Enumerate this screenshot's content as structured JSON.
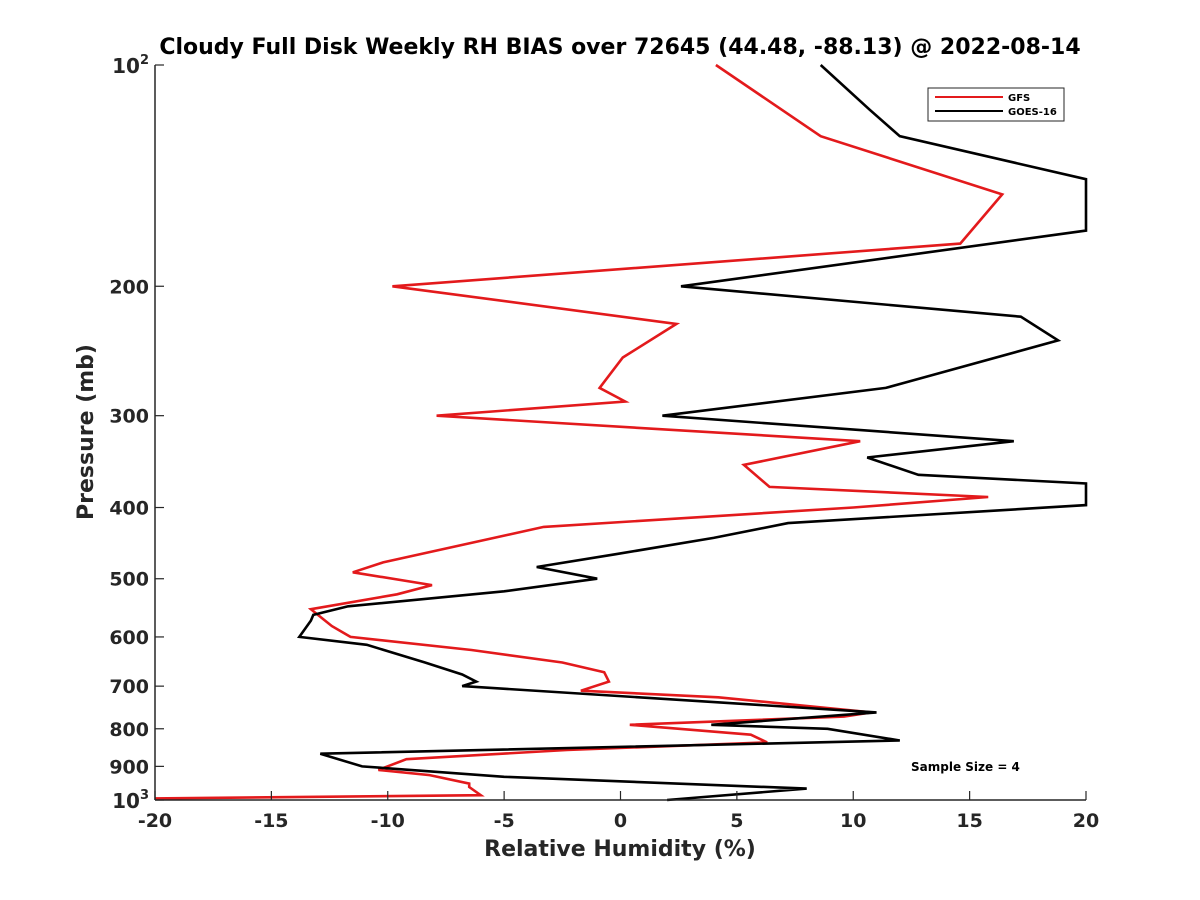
{
  "chart_data": {
    "type": "line",
    "title": "Cloudy Full Disk Weekly RH BIAS over 72645 (44.48, -88.13) @ 2022-08-14",
    "xlabel": "Relative Humidity (%)",
    "ylabel": "Pressure (mb)",
    "xlim": [
      -20,
      20
    ],
    "ylim": [
      100,
      1000
    ],
    "y_scale": "log",
    "y_reversed": true,
    "grid": false,
    "legend_position": "top-right",
    "x_ticks": [
      {
        "value": -20,
        "label": "-20"
      },
      {
        "value": -15,
        "label": "-15"
      },
      {
        "value": -10,
        "label": "-10"
      },
      {
        "value": -5,
        "label": "-5"
      },
      {
        "value": 0,
        "label": "0"
      },
      {
        "value": 5,
        "label": "5"
      },
      {
        "value": 10,
        "label": "10"
      },
      {
        "value": 15,
        "label": "15"
      },
      {
        "value": 20,
        "label": "20"
      }
    ],
    "y_ticks": [
      {
        "value": 100,
        "base": "10",
        "exp": "2"
      },
      {
        "value": 200,
        "label": "200"
      },
      {
        "value": 300,
        "label": "300"
      },
      {
        "value": 400,
        "label": "400"
      },
      {
        "value": 500,
        "label": "500"
      },
      {
        "value": 600,
        "label": "600"
      },
      {
        "value": 700,
        "label": "700"
      },
      {
        "value": 800,
        "label": "800"
      },
      {
        "value": 900,
        "label": "900"
      },
      {
        "value": 1000,
        "base": "10",
        "exp": "3"
      }
    ],
    "series": [
      {
        "name": "GFS",
        "color": "#e31a1c",
        "points": [
          [
            4.1,
            100
          ],
          [
            8.6,
            125
          ],
          [
            16.4,
            150
          ],
          [
            14.6,
            175
          ],
          [
            -9.8,
            200
          ],
          [
            2.4,
            225
          ],
          [
            0.1,
            250
          ],
          [
            -0.9,
            275
          ],
          [
            0.2,
            287
          ],
          [
            -7.9,
            300
          ],
          [
            10.3,
            325
          ],
          [
            5.3,
            350
          ],
          [
            6.4,
            375
          ],
          [
            15.8,
            387
          ],
          [
            10.0,
            400
          ],
          [
            -3.3,
            425
          ],
          [
            -10.2,
            475
          ],
          [
            -11.5,
            490
          ],
          [
            -8.1,
            510
          ],
          [
            -9.6,
            525
          ],
          [
            -13.3,
            550
          ],
          [
            -13.0,
            560
          ],
          [
            -12.4,
            580
          ],
          [
            -11.6,
            600
          ],
          [
            -6.4,
            625
          ],
          [
            -2.5,
            650
          ],
          [
            -0.7,
            670
          ],
          [
            -0.5,
            690
          ],
          [
            -1.7,
            710
          ],
          [
            4.2,
            725
          ],
          [
            10.8,
            760
          ],
          [
            9.6,
            770
          ],
          [
            0.4,
            790
          ],
          [
            5.6,
            815
          ],
          [
            6.3,
            835
          ],
          [
            -2.3,
            855
          ],
          [
            -9.2,
            880
          ],
          [
            -10.4,
            910
          ],
          [
            -8.2,
            925
          ],
          [
            -6.5,
            950
          ],
          [
            -6.5,
            960
          ],
          [
            -6.0,
            985
          ],
          [
            -20.0,
            995
          ]
        ]
      },
      {
        "name": "GOES-16",
        "color": "#000000",
        "points": [
          [
            8.6,
            100
          ],
          [
            10.7,
            115
          ],
          [
            12.0,
            125
          ],
          [
            20.0,
            143
          ],
          [
            20.0,
            168
          ],
          [
            2.6,
            200
          ],
          [
            17.2,
            220
          ],
          [
            18.8,
            237
          ],
          [
            11.4,
            275
          ],
          [
            1.8,
            300
          ],
          [
            16.9,
            325
          ],
          [
            10.6,
            342
          ],
          [
            12.8,
            361
          ],
          [
            20.0,
            371
          ],
          [
            20.0,
            397
          ],
          [
            7.2,
            420
          ],
          [
            4.0,
            440
          ],
          [
            -0.2,
            463
          ],
          [
            -3.6,
            482
          ],
          [
            -1.0,
            500
          ],
          [
            -5.0,
            520
          ],
          [
            -11.7,
            545
          ],
          [
            -13.2,
            560
          ],
          [
            -13.3,
            570
          ],
          [
            -13.8,
            600
          ],
          [
            -10.9,
            615
          ],
          [
            -8.4,
            650
          ],
          [
            -6.8,
            675
          ],
          [
            -6.2,
            690
          ],
          [
            -6.8,
            700
          ],
          [
            11.0,
            760
          ],
          [
            3.9,
            790
          ],
          [
            8.9,
            800
          ],
          [
            12.0,
            830
          ],
          [
            -12.9,
            865
          ],
          [
            -11.1,
            900
          ],
          [
            -5.0,
            930
          ],
          [
            8.0,
            965
          ],
          [
            2.0,
            1000
          ]
        ]
      }
    ],
    "annotation": "Sample Size = 4"
  }
}
